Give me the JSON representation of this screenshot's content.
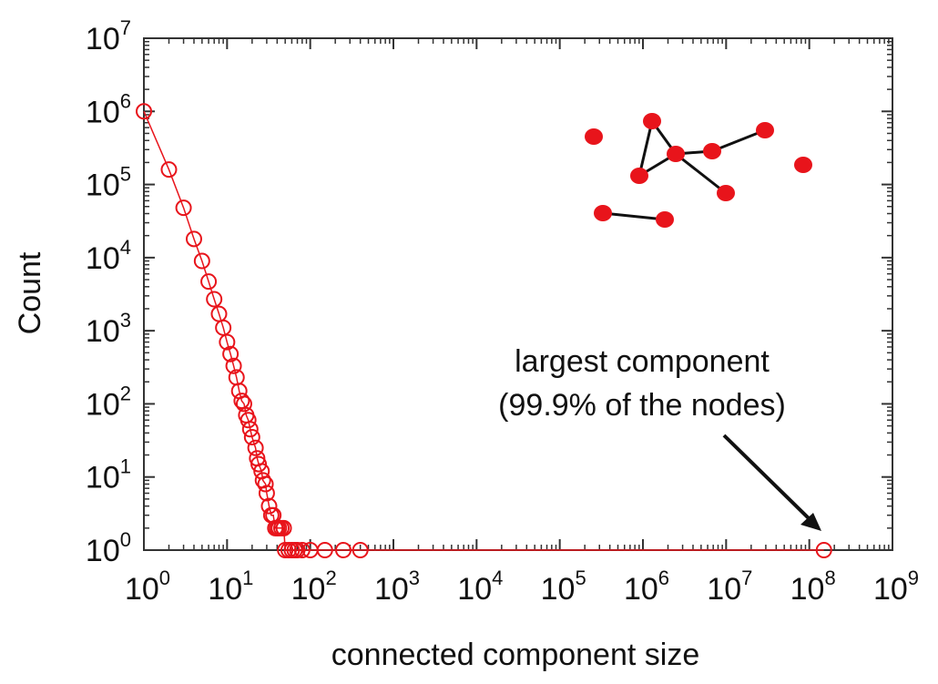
{
  "chart_data": {
    "type": "scatter",
    "xlabel": "connected component size",
    "ylabel": "Count",
    "xscale": "log",
    "yscale": "log",
    "xlim": [
      1,
      1000000000
    ],
    "ylim": [
      1,
      10000000
    ],
    "x_ticks": [
      {
        "base": "10",
        "exp": "0"
      },
      {
        "base": "10",
        "exp": "1"
      },
      {
        "base": "10",
        "exp": "2"
      },
      {
        "base": "10",
        "exp": "3"
      },
      {
        "base": "10",
        "exp": "4"
      },
      {
        "base": "10",
        "exp": "5"
      },
      {
        "base": "10",
        "exp": "6"
      },
      {
        "base": "10",
        "exp": "7"
      },
      {
        "base": "10",
        "exp": "8"
      },
      {
        "base": "10",
        "exp": "9"
      }
    ],
    "y_ticks": [
      {
        "base": "10",
        "exp": "0"
      },
      {
        "base": "10",
        "exp": "1"
      },
      {
        "base": "10",
        "exp": "2"
      },
      {
        "base": "10",
        "exp": "3"
      },
      {
        "base": "10",
        "exp": "4"
      },
      {
        "base": "10",
        "exp": "5"
      },
      {
        "base": "10",
        "exp": "6"
      },
      {
        "base": "10",
        "exp": "7"
      }
    ],
    "grid": false,
    "legend": "none",
    "series_color": "#e8141b",
    "series": [
      {
        "marker": "open-circle",
        "connected": true,
        "points": [
          {
            "x": 1,
            "y": 1000000
          },
          {
            "x": 2,
            "y": 160000
          },
          {
            "x": 3,
            "y": 48000
          },
          {
            "x": 4,
            "y": 18000
          },
          {
            "x": 5,
            "y": 9000
          },
          {
            "x": 6,
            "y": 4700
          },
          {
            "x": 7,
            "y": 2700
          },
          {
            "x": 8,
            "y": 1700
          },
          {
            "x": 9,
            "y": 1100
          },
          {
            "x": 10,
            "y": 700
          },
          {
            "x": 11,
            "y": 480
          },
          {
            "x": 12,
            "y": 330
          },
          {
            "x": 13,
            "y": 230
          },
          {
            "x": 14,
            "y": 150
          },
          {
            "x": 15,
            "y": 110
          },
          {
            "x": 16,
            "y": 100
          },
          {
            "x": 17,
            "y": 70
          },
          {
            "x": 18,
            "y": 60
          },
          {
            "x": 19,
            "y": 45
          },
          {
            "x": 20,
            "y": 35
          },
          {
            "x": 22,
            "y": 25
          },
          {
            "x": 23,
            "y": 18
          },
          {
            "x": 24,
            "y": 15
          },
          {
            "x": 26,
            "y": 12
          },
          {
            "x": 27,
            "y": 9
          },
          {
            "x": 29,
            "y": 8
          },
          {
            "x": 30,
            "y": 6
          },
          {
            "x": 32,
            "y": 4
          },
          {
            "x": 34,
            "y": 3
          },
          {
            "x": 36,
            "y": 3
          },
          {
            "x": 38,
            "y": 2
          },
          {
            "x": 40,
            "y": 2
          },
          {
            "x": 42,
            "y": 2
          },
          {
            "x": 45,
            "y": 2
          },
          {
            "x": 48,
            "y": 2
          },
          {
            "x": 50,
            "y": 1
          },
          {
            "x": 55,
            "y": 1
          },
          {
            "x": 60,
            "y": 1
          },
          {
            "x": 65,
            "y": 1
          },
          {
            "x": 70,
            "y": 1
          },
          {
            "x": 80,
            "y": 1
          },
          {
            "x": 100,
            "y": 1
          },
          {
            "x": 150,
            "y": 1
          },
          {
            "x": 250,
            "y": 1
          },
          {
            "x": 400,
            "y": 1
          },
          {
            "x": 150000000,
            "y": 1
          }
        ]
      }
    ],
    "annotation": {
      "lines": [
        "largest component",
        "(99.9% of the nodes)"
      ],
      "target": {
        "x": 150000000,
        "y": 1
      }
    }
  },
  "inset_graph": {
    "node_color": "#e8141b",
    "edge_color": "#111111"
  }
}
